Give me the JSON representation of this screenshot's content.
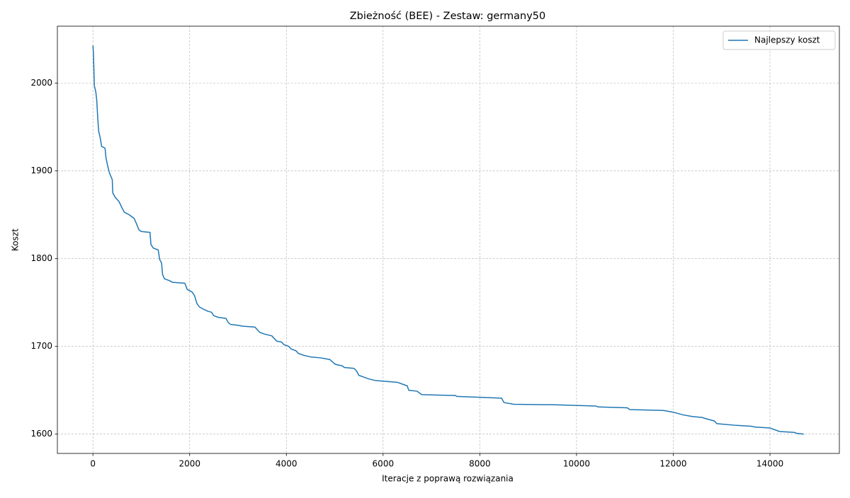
{
  "chart_data": {
    "type": "line",
    "title": "Zbieżność (BEE) - Zestaw: germany50",
    "x_label": "Iteracje z poprawą rozwiązania",
    "y_label": "Koszt",
    "x": [
      0,
      10,
      30,
      60,
      80,
      100,
      120,
      150,
      180,
      250,
      270,
      300,
      340,
      400,
      410,
      460,
      540,
      600,
      650,
      750,
      850,
      900,
      950,
      1000,
      1180,
      1200,
      1250,
      1350,
      1380,
      1420,
      1440,
      1480,
      1580,
      1650,
      1900,
      1950,
      2050,
      2100,
      2150,
      2200,
      2300,
      2380,
      2450,
      2500,
      2600,
      2750,
      2800,
      2850,
      3000,
      3100,
      3350,
      3450,
      3550,
      3700,
      3800,
      3900,
      3950,
      4050,
      4100,
      4200,
      4250,
      4350,
      4500,
      4700,
      4800,
      4900,
      5000,
      5050,
      5150,
      5200,
      5400,
      5450,
      5500,
      5600,
      5700,
      5850,
      6300,
      6450,
      6500,
      6530,
      6700,
      6800,
      7500,
      7520,
      8000,
      8450,
      8500,
      8700,
      9500,
      10400,
      10450,
      11050,
      11100,
      11800,
      12000,
      12200,
      12400,
      12600,
      12650,
      12850,
      12900,
      13300,
      13600,
      13700,
      14000,
      14200,
      14500,
      14550,
      14700
    ],
    "series": [
      {
        "name": "Najlepszy koszt",
        "color": "#1f77b4",
        "values": [
          2043,
          2035,
          1997,
          1990,
          1980,
          1960,
          1945,
          1938,
          1928,
          1926,
          1915,
          1907,
          1898,
          1890,
          1875,
          1870,
          1865,
          1858,
          1853,
          1850,
          1846,
          1840,
          1833,
          1831,
          1830,
          1816,
          1812,
          1810,
          1799,
          1795,
          1782,
          1777,
          1775,
          1773,
          1772,
          1765,
          1762,
          1758,
          1749,
          1745,
          1742,
          1740,
          1739,
          1735,
          1733,
          1732,
          1727,
          1725,
          1724,
          1723,
          1722,
          1716,
          1714,
          1712,
          1706,
          1705,
          1702,
          1700,
          1697,
          1695,
          1692,
          1690,
          1688,
          1687,
          1686,
          1685,
          1680,
          1679,
          1678,
          1676,
          1675,
          1672,
          1667,
          1665,
          1663,
          1661,
          1659,
          1656,
          1655,
          1650,
          1649,
          1645,
          1644,
          1643,
          1642,
          1641,
          1636,
          1634,
          1633.5,
          1632,
          1631,
          1630,
          1628,
          1627,
          1625,
          1622,
          1620,
          1619,
          1618,
          1615,
          1612,
          1610,
          1609,
          1608,
          1607,
          1603,
          1602,
          1601,
          1600
        ]
      }
    ],
    "xlim": [
      -735,
      15435
    ],
    "ylim": [
      1578,
      2065
    ],
    "xticks": [
      0,
      2000,
      4000,
      6000,
      8000,
      10000,
      12000,
      14000
    ],
    "yticks": [
      1600,
      1700,
      1800,
      1900,
      2000
    ],
    "grid": true,
    "legend_position": "upper-right"
  }
}
